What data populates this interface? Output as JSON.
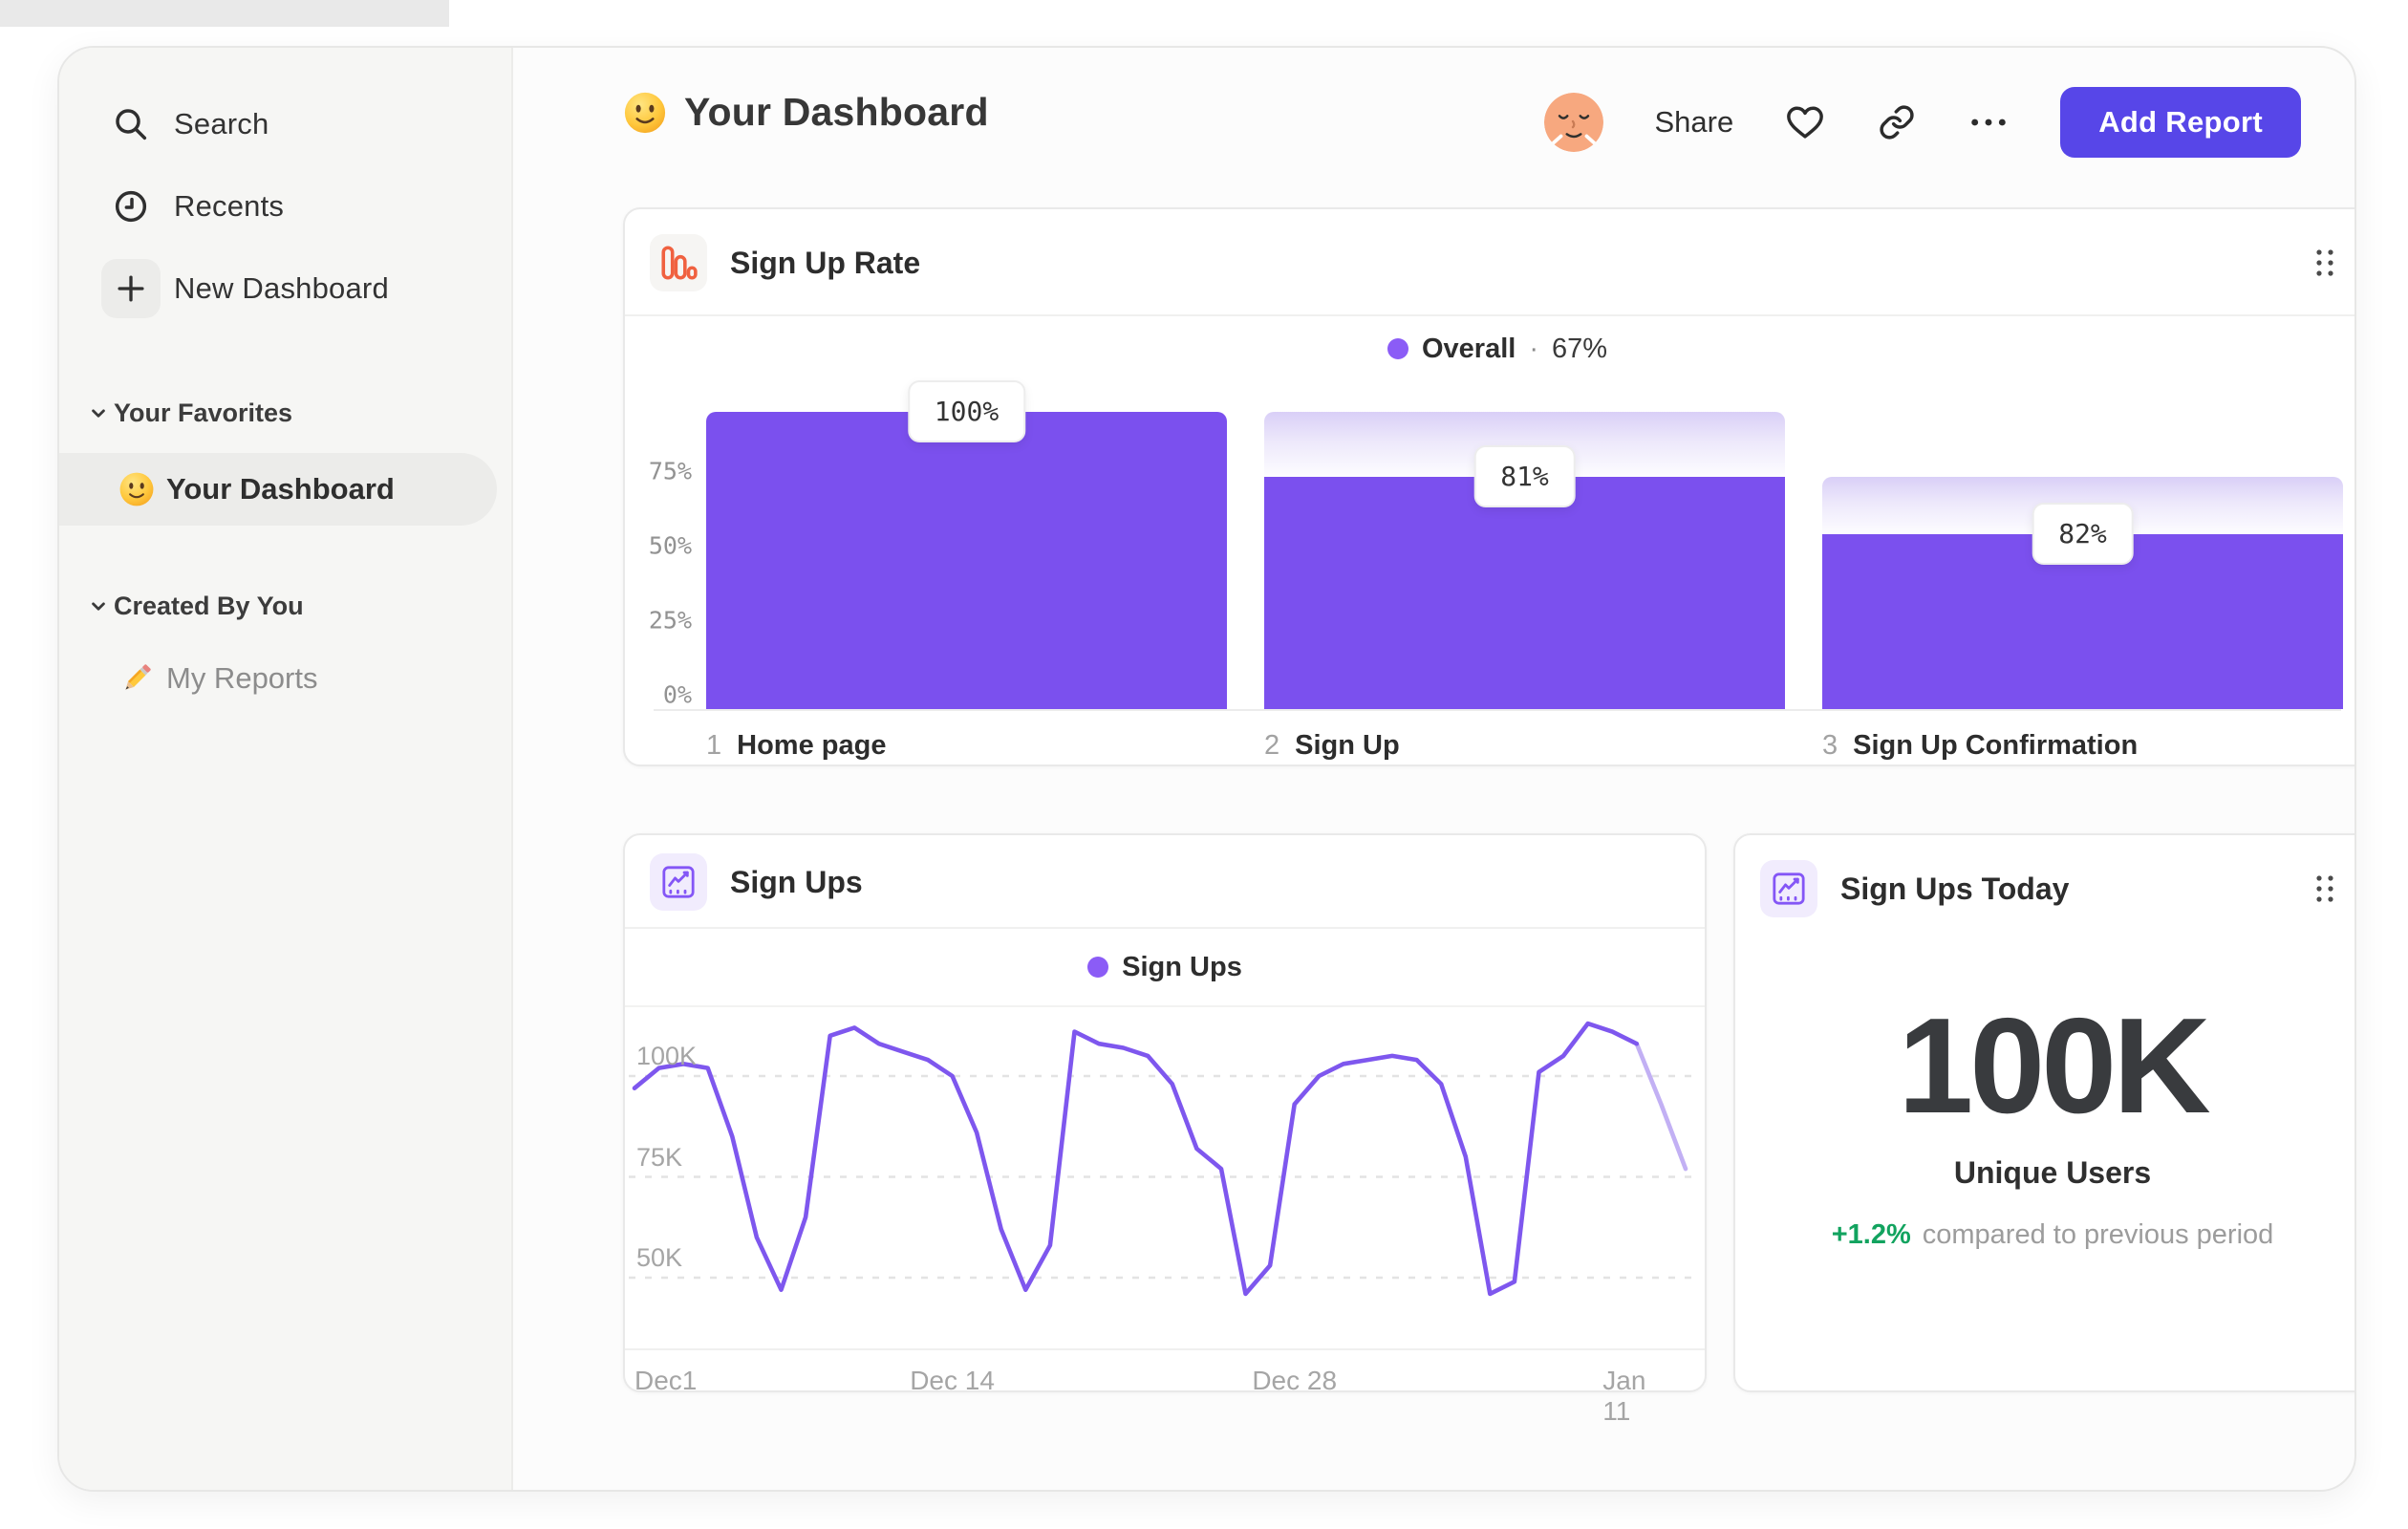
{
  "header": {
    "title": "Your Dashboard",
    "share_label": "Share",
    "add_report_label": "Add Report"
  },
  "sidebar": {
    "items": [
      {
        "label": "Search",
        "icon": "search-icon"
      },
      {
        "label": "Recents",
        "icon": "clock-icon"
      },
      {
        "label": "New Dashboard",
        "icon": "plus-icon"
      }
    ],
    "sections": [
      {
        "label": "Your Favorites",
        "items": [
          {
            "label": "Your Dashboard",
            "icon": "smiley-icon",
            "selected": true
          }
        ]
      },
      {
        "label": "Created By You",
        "items": [
          {
            "label": "My Reports",
            "icon": "pencil-icon",
            "selected": false
          }
        ]
      }
    ]
  },
  "theme": {
    "accent_button": "#5746E8",
    "funnel_bar": "#7B50EE",
    "legend_dot": "#8B5CF6",
    "line": "#7E57EE",
    "line_faded": "#C2B0F4",
    "positive_green": "#12A35F",
    "card_icon_orange": "#F06140",
    "card_icon_purple": "#8456F6"
  },
  "chart_data": [
    {
      "id": "sign_up_rate_funnel",
      "type": "bar",
      "title": "Sign Up Rate",
      "legend": {
        "series": "Overall",
        "sep": "·",
        "value": "67%"
      },
      "step_numbers": [
        "1",
        "2",
        "3"
      ],
      "categories": [
        "Home page",
        "Sign Up",
        "Sign Up Confirmation"
      ],
      "conversion_labels": [
        "100%",
        "81%",
        "82%"
      ],
      "conversion_values_pct": [
        100,
        81,
        82
      ],
      "overall_conversion_pct": 67,
      "rendered_bar_tops_axis_units": [
        95,
        73,
        54
      ],
      "yticks": [
        "75%",
        "50%",
        "25%",
        "0%"
      ],
      "ytick_values": [
        75,
        50,
        25,
        0
      ],
      "ylim": [
        0,
        100
      ],
      "grid": false,
      "legend_position": "top-center"
    },
    {
      "id": "sign_ups_line",
      "type": "line",
      "title": "Sign Ups",
      "legend": {
        "series": "Sign Ups"
      },
      "x_unit": "day",
      "x_start": "Dec 1",
      "xticks": [
        {
          "label": "Dec1",
          "day": 0
        },
        {
          "label": "Dec 14",
          "day": 13
        },
        {
          "label": "Dec 28",
          "day": 27
        },
        {
          "label": "Jan 11",
          "day": 41
        }
      ],
      "yticks": [
        {
          "label": "100K",
          "value": 100
        },
        {
          "label": "75K",
          "value": 75
        },
        {
          "label": "50K",
          "value": 50
        }
      ],
      "y_unit": "K",
      "values_thousands": [
        97,
        102,
        103,
        102,
        85,
        60,
        47,
        65,
        110,
        112,
        108,
        106,
        104,
        100,
        86,
        62,
        47,
        58,
        111,
        108,
        107,
        105,
        98,
        82,
        77,
        46,
        53,
        93,
        100,
        103,
        104,
        105,
        104,
        98,
        80,
        46,
        49,
        101,
        105,
        113,
        111,
        108,
        93,
        77
      ],
      "faded_from_index": 41,
      "grid": "dashed-horizontal",
      "legend_position": "top-center"
    },
    {
      "id": "sign_ups_today",
      "type": "big_number",
      "title": "Sign Ups Today",
      "value": "100K",
      "value_label": "Unique Users",
      "delta": "+1.2%",
      "delta_context": "compared to previous period"
    }
  ]
}
